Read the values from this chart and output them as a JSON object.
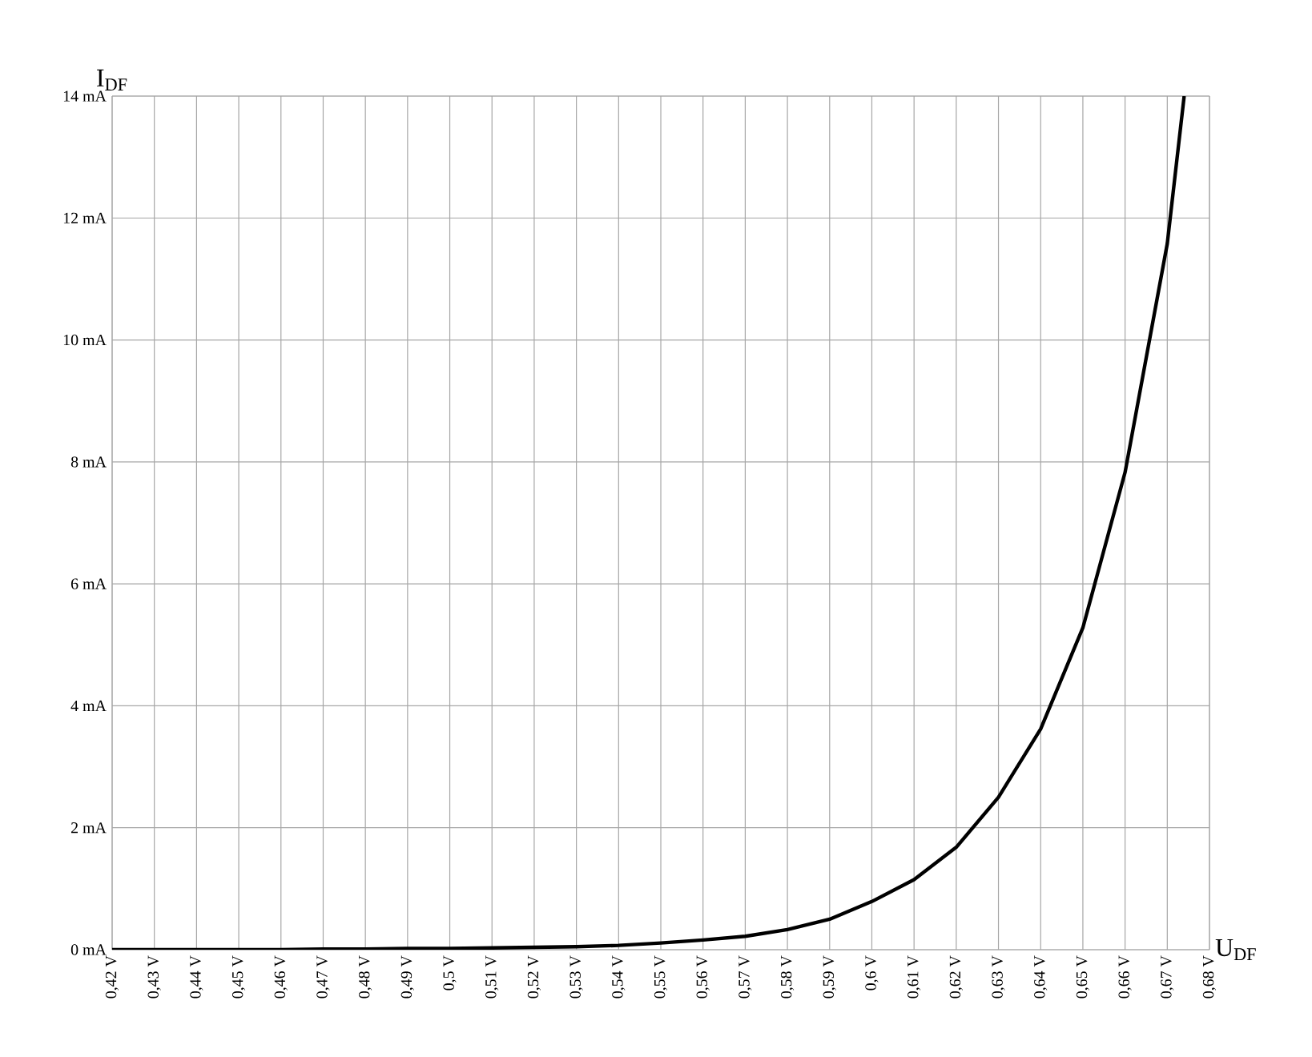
{
  "chart_data": {
    "type": "line",
    "xlabel": "U$_{DF}$",
    "ylabel": "I$_{DF}$",
    "x": [
      0.42,
      0.43,
      0.44,
      0.45,
      0.46,
      0.47,
      0.48,
      0.49,
      0.5,
      0.51,
      0.52,
      0.53,
      0.54,
      0.55,
      0.56,
      0.57,
      0.58,
      0.59,
      0.6,
      0.61,
      0.62,
      0.63,
      0.64,
      0.65,
      0.66,
      0.67,
      0.674
    ],
    "series": [
      {
        "color": "#000000",
        "values": [
          0.0,
          0.0,
          0.0,
          0.0,
          0.0,
          0.01,
          0.01,
          0.02,
          0.02,
          0.03,
          0.04,
          0.05,
          0.07,
          0.11,
          0.16,
          0.22,
          0.33,
          0.5,
          0.79,
          1.15,
          1.68,
          2.5,
          3.62,
          5.28,
          7.83,
          11.58,
          14
        ]
      }
    ],
    "xlim": [
      0.42,
      0.68
    ],
    "ylim": [
      0,
      14
    ],
    "xticks": [
      {
        "value": 0.42,
        "label": "0,42 V"
      },
      {
        "value": 0.43,
        "label": "0,43 V"
      },
      {
        "value": 0.44,
        "label": "0,44 V"
      },
      {
        "value": 0.45,
        "label": "0,45 V"
      },
      {
        "value": 0.46,
        "label": "0,46 V"
      },
      {
        "value": 0.47,
        "label": "0,47 V"
      },
      {
        "value": 0.48,
        "label": "0,48 V"
      },
      {
        "value": 0.49,
        "label": "0,49 V"
      },
      {
        "value": 0.5,
        "label": "0,5 V"
      },
      {
        "value": 0.51,
        "label": "0,51 V"
      },
      {
        "value": 0.52,
        "label": "0,52 V"
      },
      {
        "value": 0.53,
        "label": "0,53 V"
      },
      {
        "value": 0.54,
        "label": "0,54 V"
      },
      {
        "value": 0.55,
        "label": "0,55 V"
      },
      {
        "value": 0.56,
        "label": "0,56 V"
      },
      {
        "value": 0.57,
        "label": "0,57 V"
      },
      {
        "value": 0.58,
        "label": "0,58 V"
      },
      {
        "value": 0.59,
        "label": "0,59 V"
      },
      {
        "value": 0.6,
        "label": "0,6 V"
      },
      {
        "value": 0.61,
        "label": "0,61 V"
      },
      {
        "value": 0.62,
        "label": "0,62 V"
      },
      {
        "value": 0.63,
        "label": "0,63 V"
      },
      {
        "value": 0.64,
        "label": "0,64 V"
      },
      {
        "value": 0.65,
        "label": "0,65 V"
      },
      {
        "value": 0.66,
        "label": "0,66 V"
      },
      {
        "value": 0.67,
        "label": "0,67 V"
      },
      {
        "value": 0.68,
        "label": "0,68 V"
      }
    ],
    "yticks": [
      {
        "value": 0,
        "label": "0 mA"
      },
      {
        "value": 2,
        "label": "2 mA"
      },
      {
        "value": 4,
        "label": "4 mA"
      },
      {
        "value": 6,
        "label": "6 mA"
      },
      {
        "value": 8,
        "label": "8 mA"
      },
      {
        "value": 10,
        "label": "10 mA"
      },
      {
        "value": 12,
        "label": "12 mA"
      },
      {
        "value": 14,
        "label": "14 mA"
      }
    ],
    "grid": true,
    "marker": "none",
    "line_style": "solid"
  }
}
